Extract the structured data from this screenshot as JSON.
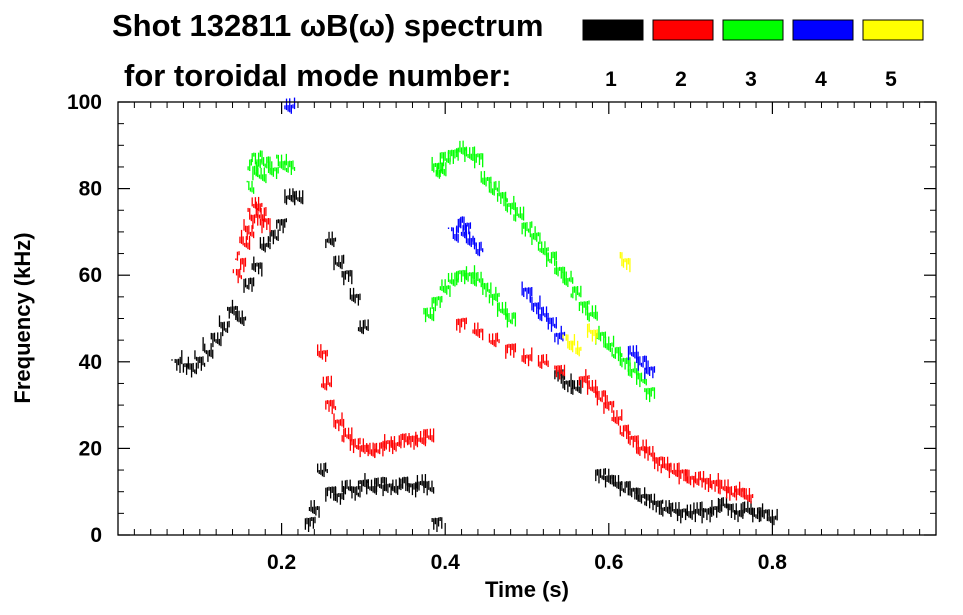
{
  "chart_data": {
    "type": "scatter",
    "title_line1": "Shot 132811 ωB(ω) spectrum",
    "title_line2": "for toroidal mode number:",
    "xlabel": "Time (s)",
    "ylabel": "Frequency (kHz)",
    "xlim": [
      0.0,
      1.0
    ],
    "ylim": [
      0,
      100
    ],
    "x_ticks": [
      0.2,
      0.4,
      0.6,
      0.8
    ],
    "x_tick_labels": [
      "0.2",
      "0.4",
      "0.6",
      "0.8"
    ],
    "y_ticks": [
      0,
      20,
      40,
      60,
      80,
      100
    ],
    "y_tick_labels": [
      "0",
      "20",
      "40",
      "60",
      "80",
      "100"
    ],
    "legend": [
      {
        "mode": "1",
        "color": "#000000"
      },
      {
        "mode": "2",
        "color": "#ff0000"
      },
      {
        "mode": "3",
        "color": "#00ff00"
      },
      {
        "mode": "4",
        "color": "#0000ff"
      },
      {
        "mode": "5",
        "color": "#ffff00"
      }
    ],
    "series": [
      {
        "name": "n=1",
        "color": "#000000",
        "points": [
          [
            0.07,
            39.5
          ],
          [
            0.08,
            39
          ],
          [
            0.09,
            38
          ],
          [
            0.1,
            40
          ],
          [
            0.11,
            42
          ],
          [
            0.12,
            45
          ],
          [
            0.13,
            48
          ],
          [
            0.14,
            52
          ],
          [
            0.15,
            50
          ],
          [
            0.16,
            58
          ],
          [
            0.17,
            62
          ],
          [
            0.18,
            67
          ],
          [
            0.19,
            69
          ],
          [
            0.2,
            72
          ],
          [
            0.21,
            78
          ],
          [
            0.22,
            78
          ],
          [
            0.235,
            3
          ],
          [
            0.24,
            6
          ],
          [
            0.25,
            15
          ],
          [
            0.26,
            10
          ],
          [
            0.27,
            9
          ],
          [
            0.28,
            11
          ],
          [
            0.29,
            10
          ],
          [
            0.3,
            12
          ],
          [
            0.31,
            11
          ],
          [
            0.32,
            12
          ],
          [
            0.33,
            11
          ],
          [
            0.34,
            11
          ],
          [
            0.35,
            12
          ],
          [
            0.36,
            11
          ],
          [
            0.37,
            12
          ],
          [
            0.38,
            11
          ],
          [
            0.39,
            3
          ],
          [
            0.26,
            68
          ],
          [
            0.27,
            63
          ],
          [
            0.28,
            60
          ],
          [
            0.29,
            55
          ],
          [
            0.3,
            48
          ],
          [
            0.54,
            37
          ],
          [
            0.55,
            35
          ],
          [
            0.56,
            34
          ],
          [
            0.59,
            14
          ],
          [
            0.6,
            13
          ],
          [
            0.61,
            12
          ],
          [
            0.62,
            11
          ],
          [
            0.63,
            10
          ],
          [
            0.64,
            9
          ],
          [
            0.65,
            8
          ],
          [
            0.66,
            7
          ],
          [
            0.67,
            6
          ],
          [
            0.68,
            6
          ],
          [
            0.69,
            5
          ],
          [
            0.7,
            5
          ],
          [
            0.71,
            6
          ],
          [
            0.72,
            5
          ],
          [
            0.73,
            6
          ],
          [
            0.74,
            7
          ],
          [
            0.75,
            6
          ],
          [
            0.76,
            5
          ],
          [
            0.77,
            6
          ],
          [
            0.78,
            5
          ],
          [
            0.79,
            5
          ],
          [
            0.8,
            4
          ]
        ]
      },
      {
        "name": "n=2",
        "color": "#ff0000",
        "points": [
          [
            0.145,
            60
          ],
          [
            0.15,
            63
          ],
          [
            0.155,
            67
          ],
          [
            0.16,
            70
          ],
          [
            0.165,
            73
          ],
          [
            0.17,
            76
          ],
          [
            0.175,
            74
          ],
          [
            0.18,
            72
          ],
          [
            0.25,
            42
          ],
          [
            0.255,
            35
          ],
          [
            0.26,
            30
          ],
          [
            0.27,
            26
          ],
          [
            0.28,
            23
          ],
          [
            0.29,
            21
          ],
          [
            0.3,
            20
          ],
          [
            0.31,
            19.5
          ],
          [
            0.32,
            20
          ],
          [
            0.33,
            21
          ],
          [
            0.34,
            21
          ],
          [
            0.35,
            22
          ],
          [
            0.36,
            22
          ],
          [
            0.37,
            22
          ],
          [
            0.38,
            23
          ],
          [
            0.42,
            49
          ],
          [
            0.44,
            47
          ],
          [
            0.46,
            45
          ],
          [
            0.48,
            43
          ],
          [
            0.5,
            41
          ],
          [
            0.52,
            40
          ],
          [
            0.54,
            38
          ],
          [
            0.57,
            36
          ],
          [
            0.58,
            34
          ],
          [
            0.59,
            32
          ],
          [
            0.6,
            30
          ],
          [
            0.61,
            27
          ],
          [
            0.62,
            24
          ],
          [
            0.63,
            22
          ],
          [
            0.64,
            20
          ],
          [
            0.65,
            19
          ],
          [
            0.66,
            17
          ],
          [
            0.67,
            16
          ],
          [
            0.68,
            15
          ],
          [
            0.69,
            14
          ],
          [
            0.7,
            13
          ],
          [
            0.71,
            13
          ],
          [
            0.72,
            12
          ],
          [
            0.73,
            12
          ],
          [
            0.74,
            11
          ],
          [
            0.75,
            10
          ],
          [
            0.76,
            10
          ],
          [
            0.77,
            9
          ]
        ]
      },
      {
        "name": "n=3",
        "color": "#00ff00",
        "points": [
          [
            0.16,
            80
          ],
          [
            0.165,
            84
          ],
          [
            0.17,
            86
          ],
          [
            0.175,
            83
          ],
          [
            0.18,
            86
          ],
          [
            0.19,
            84
          ],
          [
            0.2,
            86
          ],
          [
            0.21,
            85
          ],
          [
            0.39,
            85
          ],
          [
            0.395,
            84
          ],
          [
            0.4,
            87
          ],
          [
            0.41,
            88
          ],
          [
            0.42,
            89
          ],
          [
            0.43,
            88
          ],
          [
            0.44,
            87
          ],
          [
            0.45,
            82
          ],
          [
            0.46,
            80
          ],
          [
            0.47,
            78
          ],
          [
            0.48,
            76
          ],
          [
            0.49,
            74
          ],
          [
            0.5,
            71
          ],
          [
            0.51,
            69
          ],
          [
            0.52,
            66
          ],
          [
            0.53,
            64
          ],
          [
            0.54,
            61
          ],
          [
            0.55,
            59
          ],
          [
            0.56,
            56
          ],
          [
            0.57,
            53
          ],
          [
            0.58,
            51
          ],
          [
            0.38,
            51
          ],
          [
            0.39,
            54
          ],
          [
            0.4,
            57
          ],
          [
            0.41,
            59
          ],
          [
            0.42,
            60
          ],
          [
            0.43,
            60
          ],
          [
            0.44,
            59
          ],
          [
            0.45,
            57
          ],
          [
            0.46,
            55
          ],
          [
            0.47,
            52
          ],
          [
            0.48,
            50
          ],
          [
            0.59,
            46
          ],
          [
            0.6,
            44
          ],
          [
            0.61,
            42
          ],
          [
            0.62,
            40
          ],
          [
            0.63,
            38
          ],
          [
            0.64,
            36
          ],
          [
            0.65,
            33
          ]
        ]
      },
      {
        "name": "n=4",
        "color": "#0000ff",
        "points": [
          [
            0.41,
            69
          ],
          [
            0.42,
            70
          ],
          [
            0.425,
            71
          ],
          [
            0.43,
            68
          ],
          [
            0.44,
            66
          ],
          [
            0.5,
            56
          ],
          [
            0.51,
            53
          ],
          [
            0.52,
            51
          ],
          [
            0.53,
            49
          ],
          [
            0.54,
            46
          ],
          [
            0.63,
            42
          ],
          [
            0.64,
            40
          ],
          [
            0.65,
            38
          ],
          [
            0.21,
            99
          ]
        ]
      },
      {
        "name": "n=5",
        "color": "#ffff00",
        "points": [
          [
            0.55,
            44
          ],
          [
            0.56,
            43
          ],
          [
            0.58,
            46
          ],
          [
            0.62,
            63
          ]
        ]
      }
    ]
  }
}
